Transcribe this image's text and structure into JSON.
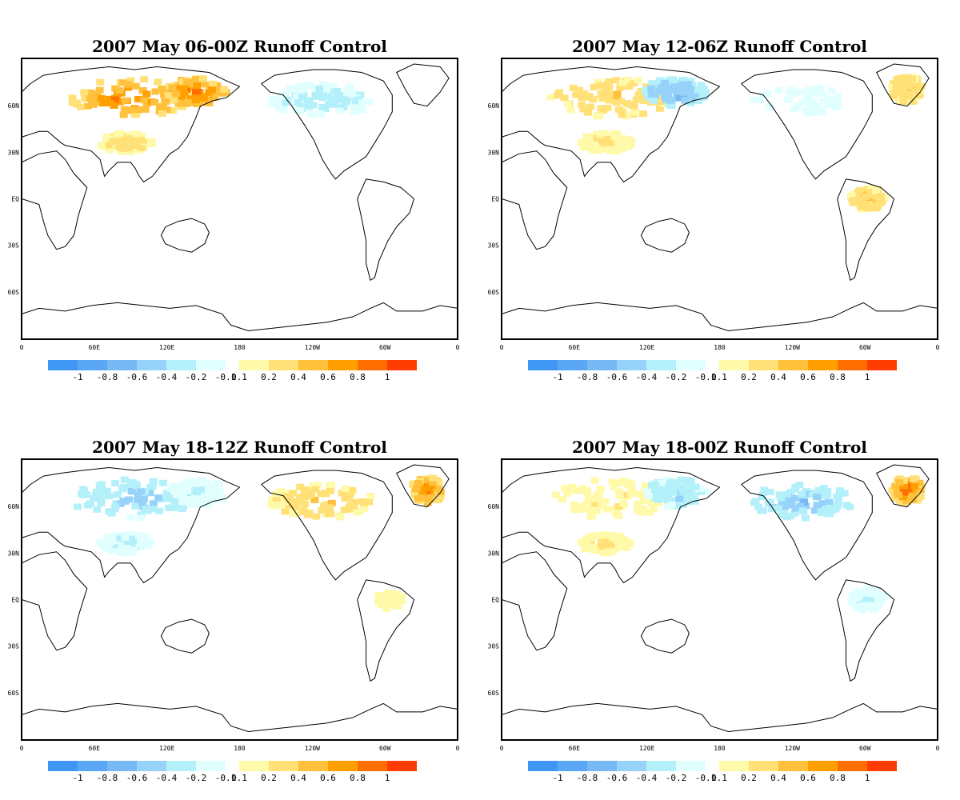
{
  "panels": [
    {
      "title": "2007 May 06-00Z Runoff Control",
      "anomaly": {
        "eurasia_north": 0.85,
        "east_siberia": 1.0,
        "north_america_north": -0.35,
        "greenland": 0.0,
        "tibet": 0.4,
        "amazon": 0.0
      }
    },
    {
      "title": "2007 May 12-06Z Runoff Control",
      "anomaly": {
        "eurasia_north": 0.45,
        "east_siberia": -0.8,
        "north_america_north": -0.2,
        "greenland": 0.5,
        "tibet": 0.3,
        "amazon": 0.5
      }
    },
    {
      "title": "2007 May 18-12Z Runoff Control",
      "anomaly": {
        "eurasia_north": -0.55,
        "east_siberia": -0.25,
        "north_america_north": 0.45,
        "greenland": 0.9,
        "tibet": -0.3,
        "amazon": 0.2
      }
    },
    {
      "title": "2007 May 18-00Z Runoff Control",
      "anomaly": {
        "eurasia_north": 0.25,
        "east_siberia": -0.5,
        "north_america_north": -0.6,
        "greenland": 0.9,
        "tibet": 0.3,
        "amazon": -0.25
      }
    }
  ],
  "map": {
    "lon_labels": [
      "0",
      "60E",
      "120E",
      "180",
      "120W",
      "60W",
      "0"
    ],
    "lat_labels": [
      "60N",
      "30N",
      "EQ",
      "30S",
      "60S"
    ]
  },
  "colorbar": {
    "labels": [
      "-1",
      "-0.8",
      "-0.6",
      "-0.4",
      "-0.2",
      "-0.1",
      "0.1",
      "0.2",
      "0.4",
      "0.6",
      "0.8",
      "1"
    ],
    "neg_colors": [
      "#3f96f4",
      "#5aa8f5",
      "#78b9f5",
      "#96d2fa",
      "#b4f0fa",
      "#e1ffff"
    ],
    "pos_colors": [
      "#fffaaa",
      "#ffe178",
      "#ffc03c",
      "#ffa000",
      "#ff6e00",
      "#ff3c00"
    ]
  }
}
